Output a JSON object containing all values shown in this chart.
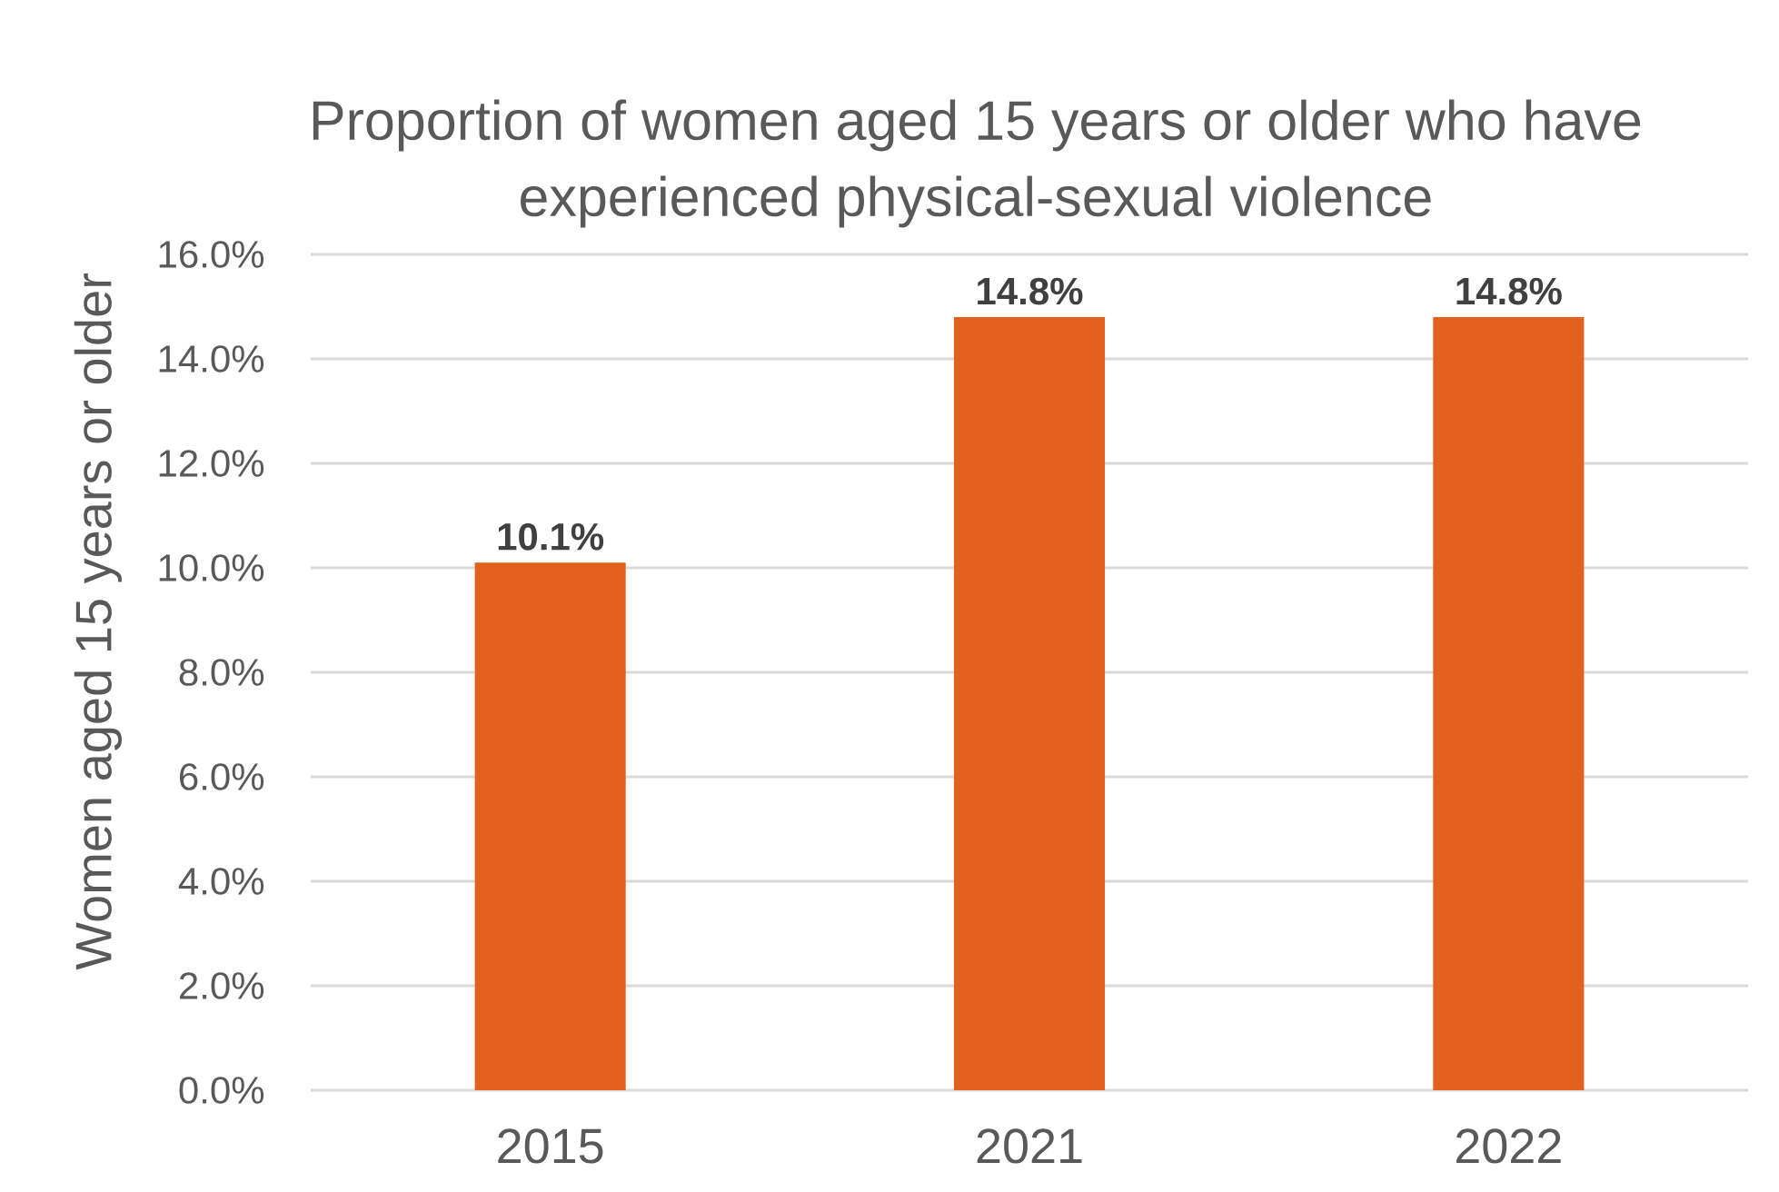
{
  "chart_data": {
    "type": "bar",
    "title": "Proportion of women aged 15 years or older who have experienced physical-sexual violence",
    "ylabel": "Women aged 15 years or older",
    "categories": [
      "2015",
      "2021",
      "2022"
    ],
    "values": [
      10.1,
      14.8,
      14.8
    ],
    "value_labels": [
      "10.1%",
      "14.8%",
      "14.8%"
    ],
    "color": "#e3611f",
    "ylim": [
      0,
      16
    ],
    "yticks": [
      {
        "value": 0,
        "label": "0.0%"
      },
      {
        "value": 2,
        "label": "2.0%"
      },
      {
        "value": 4,
        "label": "4.0%"
      },
      {
        "value": 6,
        "label": "6.0%"
      },
      {
        "value": 8,
        "label": "8.0%"
      },
      {
        "value": 10,
        "label": "10.0%"
      },
      {
        "value": 12,
        "label": "12.0%"
      },
      {
        "value": 14,
        "label": "14.0%"
      },
      {
        "value": 16,
        "label": "16.0%"
      }
    ],
    "grid": "y"
  }
}
